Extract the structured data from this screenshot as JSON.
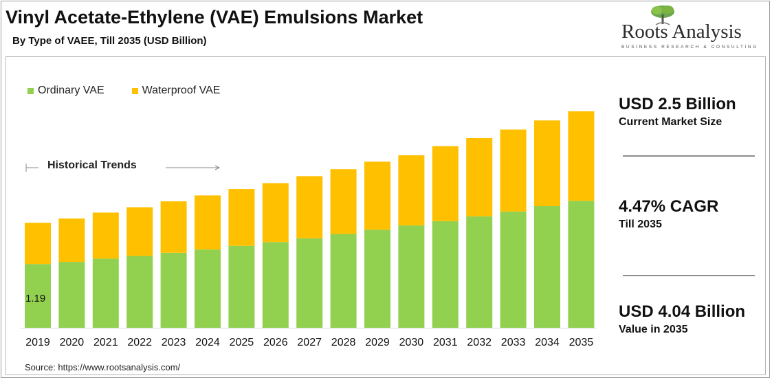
{
  "header": {
    "title": "Vinyl Acetate-Ethylene (VAE) Emulsions Market",
    "subtitle": "By Type of VAEE, Till 2035 (USD Billion)"
  },
  "logo": {
    "name": "Roots Analysis",
    "tagline": "BUSINESS RESEARCH & CONSULTING"
  },
  "annotation": {
    "historical_label": "Historical Trends"
  },
  "kpis": [
    {
      "value": "USD 2.5 Billion",
      "label": "Current Market Size"
    },
    {
      "value": "4.47% CAGR",
      "label": "Till 2035"
    },
    {
      "value": "USD 4.04 Billion",
      "label": "Value in 2035"
    }
  ],
  "source": "Source: https://www.rootsanalysis.com/",
  "colors": {
    "ordinary": "#92d050",
    "waterproof": "#ffc000"
  },
  "chart_data": {
    "type": "bar",
    "stacked": true,
    "categories": [
      "2019",
      "2020",
      "2021",
      "2022",
      "2023",
      "2024",
      "2025",
      "2026",
      "2027",
      "2028",
      "2029",
      "2030",
      "2031",
      "2032",
      "2033",
      "2034",
      "2035"
    ],
    "series": [
      {
        "name": "Ordinary VAE",
        "values": [
          1.19,
          1.23,
          1.29,
          1.34,
          1.4,
          1.46,
          1.53,
          1.6,
          1.67,
          1.75,
          1.83,
          1.91,
          1.99,
          2.08,
          2.17,
          2.27,
          2.37
        ]
      },
      {
        "name": "Waterproof VAE",
        "values": [
          0.77,
          0.81,
          0.86,
          0.91,
          0.96,
          1.01,
          1.06,
          1.1,
          1.16,
          1.21,
          1.27,
          1.31,
          1.4,
          1.46,
          1.53,
          1.6,
          1.67
        ]
      }
    ],
    "data_labels": [
      {
        "category": "2019",
        "series": "Ordinary VAE",
        "text": "1.19"
      }
    ],
    "ylim": [
      0,
      4.04
    ],
    "legend": "top-left",
    "grid": false
  }
}
